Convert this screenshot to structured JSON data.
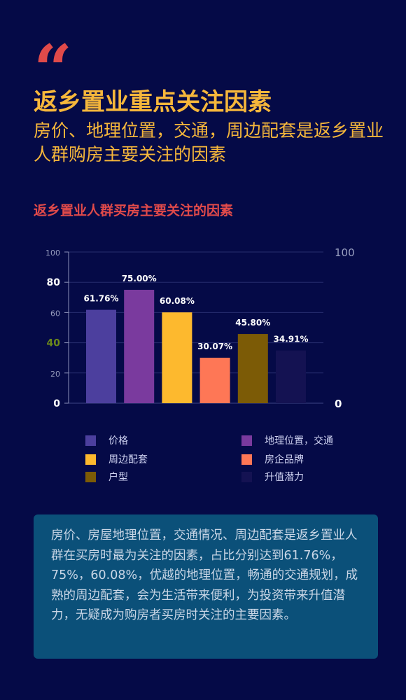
{
  "header": {
    "quote_mark": "“",
    "title": "返乡置业重点关注因素",
    "subtitle": "房价、地理位置，交通，周边配套是返乡置业人群购房主要关注的因素"
  },
  "chart_data": {
    "type": "bar",
    "title": "返乡置业人群买房主要关注的因素",
    "categories": [
      "价格",
      "地理位置，交通",
      "周边配套",
      "房企品牌",
      "户型",
      "升值潜力"
    ],
    "values": [
      61.76,
      75.0,
      60.08,
      30.07,
      45.8,
      34.91
    ],
    "data_labels": [
      "61.76%",
      "75.00%",
      "60.08%",
      "30.07%",
      "45.80%",
      "34.91%"
    ],
    "colors": [
      "#4c3f9e",
      "#7a3a9e",
      "#fdb92e",
      "#fe7756",
      "#7c5b06",
      "#141252"
    ],
    "ylim": [
      0,
      100
    ],
    "y_ticks": [
      "0",
      "20",
      "40",
      "60",
      "80",
      "100"
    ],
    "y2_ticks": [
      "0",
      "100"
    ],
    "grid": true,
    "legend_position": "bottom"
  },
  "legend": {
    "items": [
      {
        "label": "价格",
        "color": "#4c3f9e"
      },
      {
        "label": "地理位置，交通",
        "color": "#7a3a9e"
      },
      {
        "label": "周边配套",
        "color": "#fdb92e"
      },
      {
        "label": "房企品牌",
        "color": "#fe7756"
      },
      {
        "label": "户型",
        "color": "#7c5b06"
      },
      {
        "label": "升值潜力",
        "color": "#141252"
      }
    ]
  },
  "summary": {
    "text": "房价、房屋地理位置，交通情况、周边配套是返乡置业人群在买房时最为关注的因素，占比分别达到61.76%，75%，60.08%，优越的地理位置，畅通的交通规划，成熟的周边配套，会为生活带来便利，为投资带来升值潜力，无疑成为购房者买房时关注的主要因素。"
  }
}
